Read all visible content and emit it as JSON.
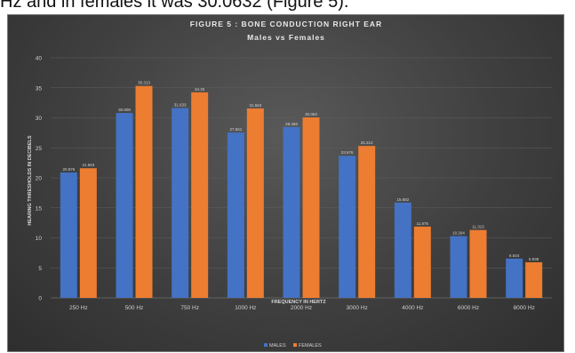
{
  "caption": "Hz and in females it was 30.0632 (Figure 5).",
  "chart_data": {
    "type": "bar",
    "title": "FIGURE 5 : BONE CONDUCTION RIGHT EAR",
    "subtitle": "Males vs Females",
    "xlabel": "FREQUENCY IN HERTZ",
    "ylabel": "HEARING THRESHOLDS IN DECIBELS",
    "ylim": [
      0,
      40
    ],
    "yticks": [
      0,
      5,
      10,
      15,
      20,
      25,
      30,
      35,
      40
    ],
    "grid": true,
    "legend_position": "bottom",
    "categories": [
      "250 Hz",
      "500 Hz",
      "750 Hz",
      "1000 Hz",
      "2000 Hz",
      "3000 Hz",
      "4000 Hz",
      "6000 Hz",
      "8000 Hz"
    ],
    "series": [
      {
        "name": "MALES",
        "color": "#4472c4",
        "values": [
          20.9,
          30.809,
          31.633,
          27.551,
          28.469,
          23.676,
          15.882,
          10.294,
          6.544
        ],
        "labels": [
          "20.876",
          "30.809",
          "31.633",
          "27.551",
          "28.469",
          "23.676",
          "15.882",
          "10.294",
          "6.544"
        ]
      },
      {
        "name": "FEMALES",
        "color": "#ed7d31",
        "values": [
          21.6,
          35.313,
          34.25,
          31.563,
          30.063,
          25.313,
          11.875,
          11.313,
          5.938
        ],
        "labels": [
          "21.563",
          "35.313",
          "34.25",
          "31.563",
          "30.063",
          "25.313",
          "11.875",
          "11.313",
          "5.938"
        ]
      }
    ]
  }
}
